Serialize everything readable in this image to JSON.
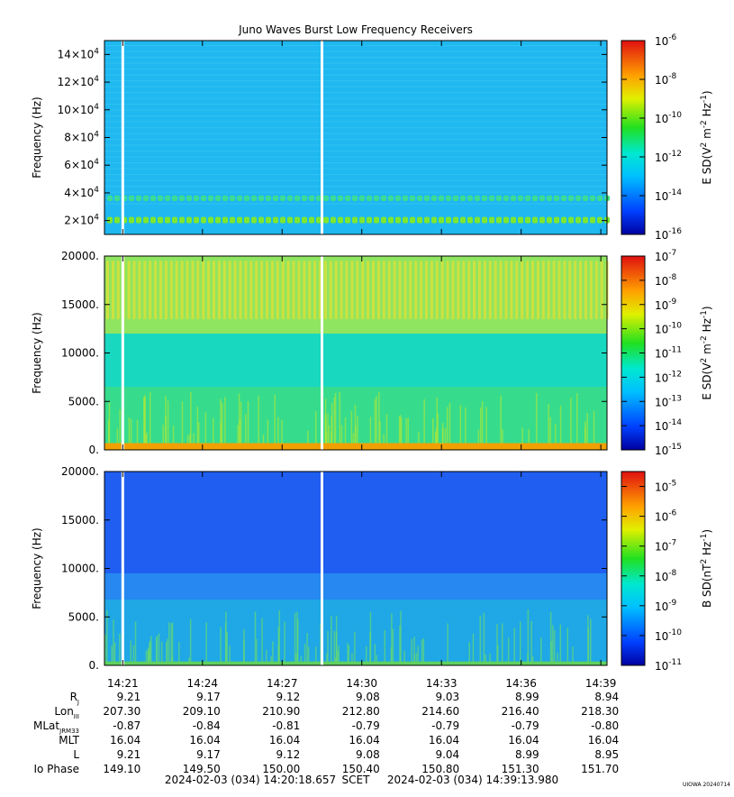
{
  "title": "Juno Waves Burst Low Frequency Receivers",
  "panels": [
    {
      "id": "p1",
      "ylabel": "Frequency (Hz)",
      "yticks": [
        {
          "v": 20000,
          "m": "2",
          "e": "4"
        },
        {
          "v": 40000,
          "m": "4",
          "e": "4"
        },
        {
          "v": 60000,
          "m": "6",
          "e": "4"
        },
        {
          "v": 80000,
          "m": "8",
          "e": "4"
        },
        {
          "v": 100000,
          "m": "10",
          "e": "4"
        },
        {
          "v": 120000,
          "m": "12",
          "e": "4"
        },
        {
          "v": 140000,
          "m": "14",
          "e": "4"
        }
      ],
      "ylim": [
        10000,
        150000
      ],
      "bg": "#1fb8f0",
      "colorbar": {
        "label": "E SD(V² m⁻² Hz⁻¹)",
        "label_parts": [
          "E SD(V",
          "2",
          " m",
          "-2",
          " Hz",
          "-1",
          ")"
        ],
        "exp_min": -16,
        "exp_max": -6,
        "ticks": [
          "-6",
          "-8",
          "-10",
          "-12",
          "-14",
          "-16"
        ]
      }
    },
    {
      "id": "p2",
      "ylabel": "Frequency (Hz)",
      "yticks": [
        {
          "v": 0,
          "t": "0."
        },
        {
          "v": 5000,
          "t": "5000."
        },
        {
          "v": 10000,
          "t": "10000."
        },
        {
          "v": 15000,
          "t": "15000."
        },
        {
          "v": 20000,
          "t": "20000."
        }
      ],
      "ylim": [
        0,
        20000
      ],
      "bg": "#18d8c0",
      "colorbar": {
        "label": "E SD(V² m⁻² Hz⁻¹)",
        "label_parts": [
          "E SD(V",
          "2",
          " m",
          "-2",
          " Hz",
          "-1",
          ")"
        ],
        "exp_min": -15,
        "exp_max": -7,
        "ticks": [
          "-7",
          "-8",
          "-9",
          "-10",
          "-11",
          "-12",
          "-13",
          "-14",
          "-15"
        ]
      }
    },
    {
      "id": "p3",
      "ylabel": "Frequency (Hz)",
      "yticks": [
        {
          "v": 0,
          "t": "0."
        },
        {
          "v": 5000,
          "t": "5000."
        },
        {
          "v": 10000,
          "t": "10000."
        },
        {
          "v": 15000,
          "t": "15000."
        },
        {
          "v": 20000,
          "t": "20000."
        }
      ],
      "ylim": [
        0,
        20000
      ],
      "bg": "#1f5ef0",
      "colorbar": {
        "label": "B SD(nT² Hz⁻¹)",
        "label_parts": [
          "B SD(nT",
          "2",
          " Hz",
          "-1",
          ")"
        ],
        "exp_min": -11,
        "exp_max": -4.5,
        "ticks": [
          "-5",
          "-6",
          "-7",
          "-8",
          "-9",
          "-10",
          "-11"
        ]
      }
    }
  ],
  "chart_data": {
    "type": "heatmap",
    "title": "Juno Waves Burst Low Frequency Receivers",
    "x_ticks": [
      "14:21",
      "14:24",
      "14:27",
      "14:30",
      "14:33",
      "14:36",
      "14:39"
    ],
    "gaps_at": [
      "14:21",
      "14:28:30"
    ],
    "panels": [
      {
        "ylabel": "Frequency (Hz)",
        "ylim": [
          10000,
          150000
        ],
        "colorbar": "E SD(V^2 m^-2 Hz^-1)",
        "crange": [
          1e-16,
          1e-06
        ]
      },
      {
        "ylabel": "Frequency (Hz)",
        "ylim": [
          0,
          20000
        ],
        "colorbar": "E SD(V^2 m^-2 Hz^-1)",
        "crange": [
          1e-15,
          1e-07
        ]
      },
      {
        "ylabel": "Frequency (Hz)",
        "ylim": [
          0,
          20000
        ],
        "colorbar": "B SD(nT^2 Hz^-1)",
        "crange": [
          1e-11,
          3e-05
        ]
      }
    ]
  },
  "ephemeris": {
    "rows": [
      {
        "name": "Rj",
        "main": "R",
        "sub": "J",
        "values": [
          "9.21",
          "9.17",
          "9.12",
          "9.08",
          "9.03",
          "8.99",
          "8.94"
        ]
      },
      {
        "name": "LonIII",
        "main": "Lon",
        "sub": "III",
        "values": [
          "207.30",
          "209.10",
          "210.90",
          "212.80",
          "214.60",
          "216.40",
          "218.30"
        ]
      },
      {
        "name": "MLatJRM33",
        "main": "MLat",
        "sub": "JRM33",
        "values": [
          "-0.87",
          "-0.84",
          "-0.81",
          "-0.79",
          "-0.79",
          "-0.79",
          "-0.80"
        ]
      },
      {
        "name": "MLT",
        "main": "MLT",
        "sub": "",
        "values": [
          "16.04",
          "16.04",
          "16.04",
          "16.04",
          "16.04",
          "16.04",
          "16.04"
        ]
      },
      {
        "name": "L",
        "main": "L",
        "sub": "",
        "values": [
          "9.21",
          "9.17",
          "9.12",
          "9.08",
          "9.04",
          "8.99",
          "8.95"
        ]
      },
      {
        "name": "Io Phase",
        "main": "Io Phase",
        "sub": "",
        "values": [
          "149.10",
          "149.50",
          "150.00",
          "150.40",
          "150.80",
          "151.30",
          "151.70"
        ]
      }
    ]
  },
  "footer": {
    "start": "2024-02-03 (034) 14:20:18.657",
    "mid": "SCET",
    "end": "2024-02-03 (034) 14:39:13.980",
    "credit": "UIOWA 20240714"
  }
}
